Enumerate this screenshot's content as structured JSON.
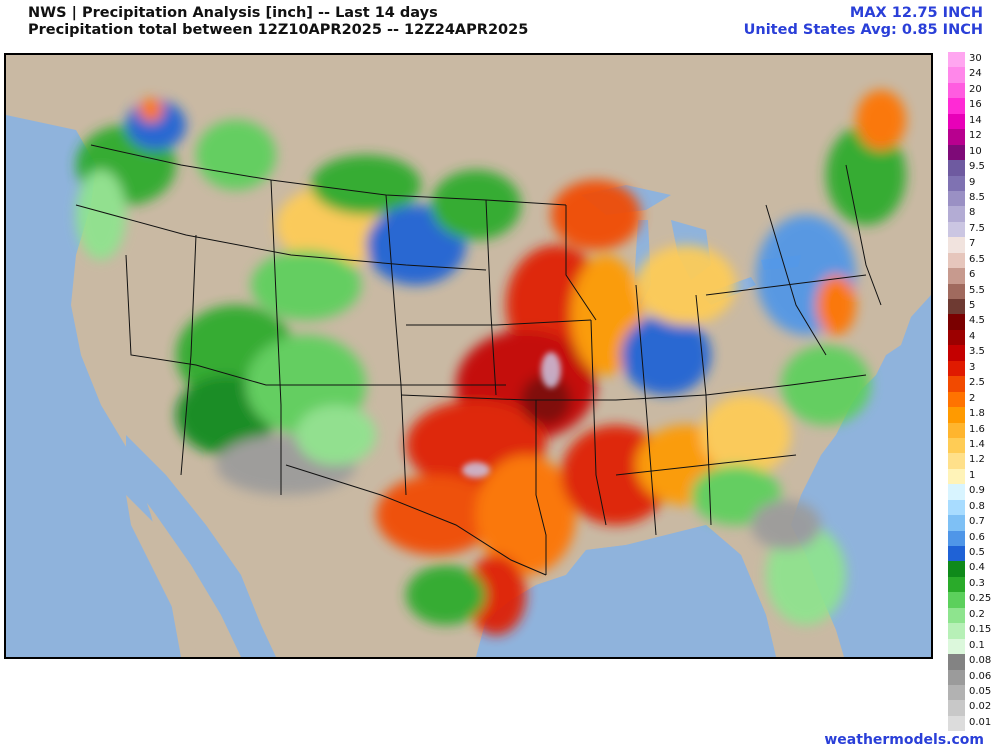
{
  "header": {
    "title_line1": "NWS | Precipitation Analysis [inch] -- Last 14 days",
    "title_line2": "Precipitation total between 12Z10APR2025 -- 12Z24APR2025",
    "max_label": "MAX 12.75 INCH",
    "avg_label": "United States Avg: 0.85 INCH"
  },
  "legend": {
    "items": [
      {
        "label": "30",
        "color": "#ffa6f0"
      },
      {
        "label": "24",
        "color": "#ff87ea"
      },
      {
        "label": "20",
        "color": "#ff5ce0"
      },
      {
        "label": "16",
        "color": "#ff2ad5"
      },
      {
        "label": "14",
        "color": "#e800b8"
      },
      {
        "label": "12",
        "color": "#b8008f"
      },
      {
        "label": "10",
        "color": "#7e0a78"
      },
      {
        "label": "9.5",
        "color": "#6e5aa0"
      },
      {
        "label": "9",
        "color": "#7f72b2"
      },
      {
        "label": "8.5",
        "color": "#9a90c4"
      },
      {
        "label": "8",
        "color": "#b3acd4"
      },
      {
        "label": "7.5",
        "color": "#cbc6e2"
      },
      {
        "label": "7",
        "color": "#f1e3de"
      },
      {
        "label": "6.5",
        "color": "#e6c6bc"
      },
      {
        "label": "6",
        "color": "#c79a8e"
      },
      {
        "label": "5.5",
        "color": "#a06a5e"
      },
      {
        "label": "5",
        "color": "#6e3a32"
      },
      {
        "label": "4.5",
        "color": "#7a0000"
      },
      {
        "label": "4",
        "color": "#9c0000"
      },
      {
        "label": "3.5",
        "color": "#c40000"
      },
      {
        "label": "3",
        "color": "#e01a00"
      },
      {
        "label": "2.5",
        "color": "#f24a00"
      },
      {
        "label": "2",
        "color": "#ff7300"
      },
      {
        "label": "1.8",
        "color": "#ff9a00"
      },
      {
        "label": "1.6",
        "color": "#ffb52e"
      },
      {
        "label": "1.4",
        "color": "#ffcc55"
      },
      {
        "label": "1.2",
        "color": "#ffe08a"
      },
      {
        "label": "1",
        "color": "#fff3b8"
      },
      {
        "label": "0.9",
        "color": "#d8f4ff"
      },
      {
        "label": "0.8",
        "color": "#a8dcff"
      },
      {
        "label": "0.7",
        "color": "#7ec0f5"
      },
      {
        "label": "0.6",
        "color": "#4f96e8"
      },
      {
        "label": "0.5",
        "color": "#1f62d6"
      },
      {
        "label": "0.4",
        "color": "#0f8a1a"
      },
      {
        "label": "0.3",
        "color": "#2aab2a"
      },
      {
        "label": "0.25",
        "color": "#5cd05c"
      },
      {
        "label": "0.2",
        "color": "#8ee48e"
      },
      {
        "label": "0.15",
        "color": "#b7f0b7"
      },
      {
        "label": "0.1",
        "color": "#dcf8dc"
      },
      {
        "label": "0.08",
        "color": "#838383"
      },
      {
        "label": "0.06",
        "color": "#9b9b9b"
      },
      {
        "label": "0.05",
        "color": "#b2b2b2"
      },
      {
        "label": "0.02",
        "color": "#c8c8c8"
      },
      {
        "label": "0.01",
        "color": "#dcdcdc"
      }
    ]
  },
  "map": {
    "land_color": "#c9b9a3",
    "water_color": "#8fb3dc",
    "border_color": "#111111"
  },
  "footer": {
    "credit": "weathermodels.com"
  }
}
